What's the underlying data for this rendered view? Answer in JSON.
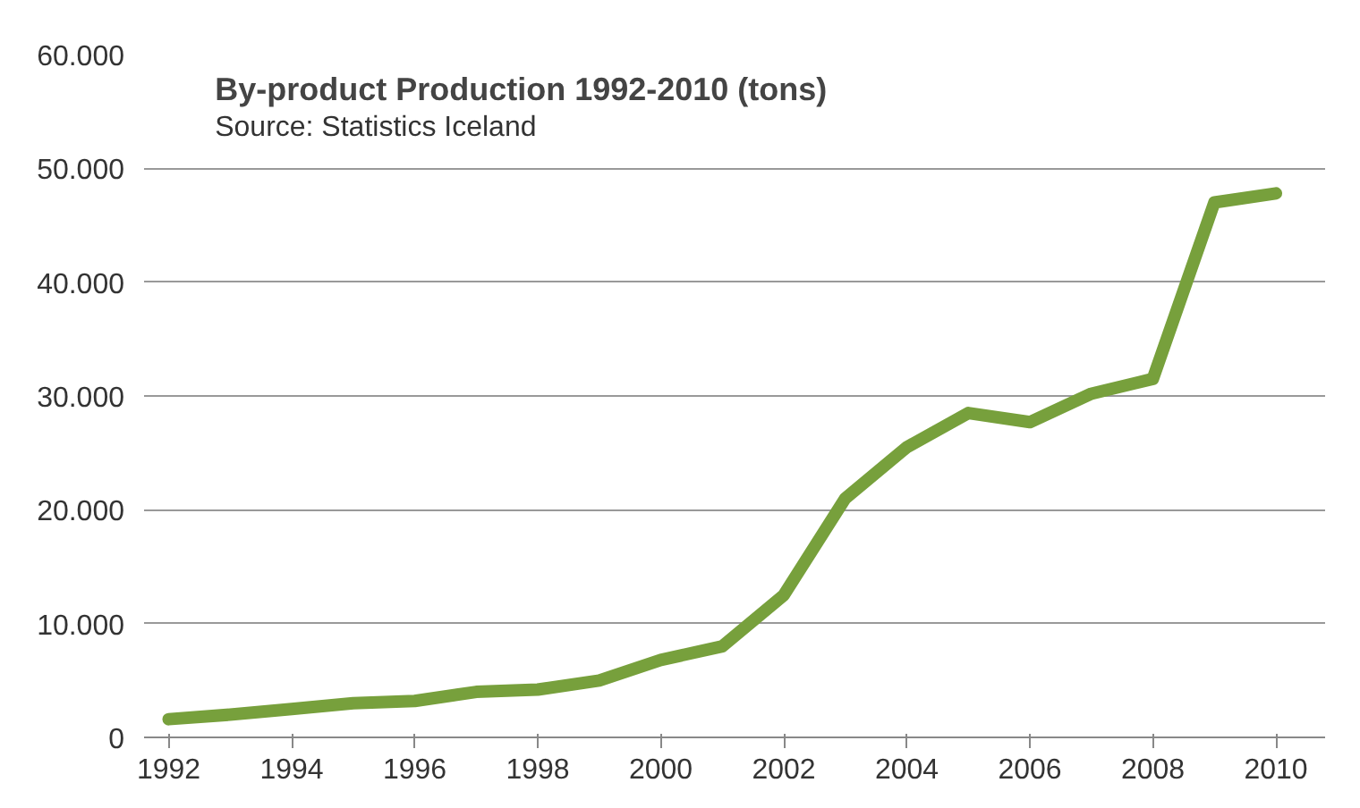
{
  "chart_data": {
    "type": "line",
    "title": "By-product Production 1992-2010 (tons)",
    "subtitle": "Source: Statistics Iceland",
    "x": [
      1992,
      1993,
      1994,
      1995,
      1996,
      1997,
      1998,
      1999,
      2000,
      2001,
      2002,
      2003,
      2004,
      2005,
      2006,
      2007,
      2008,
      2009,
      2010
    ],
    "series": [
      {
        "color": "#77a03c",
        "values": [
          1600,
          2000,
          2500,
          3000,
          3200,
          4000,
          4200,
          5000,
          6800,
          8000,
          12500,
          21000,
          25500,
          28500,
          27700,
          30200,
          31500,
          47000,
          47800
        ]
      }
    ],
    "xlim": [
      1991.6,
      2010.8
    ],
    "xticks": [
      1992,
      1994,
      1996,
      1998,
      2000,
      2002,
      2004,
      2006,
      2008,
      2010
    ],
    "ylim": [
      0,
      60000
    ],
    "yticks": [
      {
        "value": 0,
        "label": "0"
      },
      {
        "value": 10000,
        "label": "10.000"
      },
      {
        "value": 20000,
        "label": "20.000"
      },
      {
        "value": 30000,
        "label": "30.000"
      },
      {
        "value": 40000,
        "label": "40.000"
      },
      {
        "value": 50000,
        "label": "50.000"
      },
      {
        "value": 60000,
        "label": "60.000"
      }
    ],
    "grid": "y",
    "marker": "none",
    "line_style": "solid"
  }
}
